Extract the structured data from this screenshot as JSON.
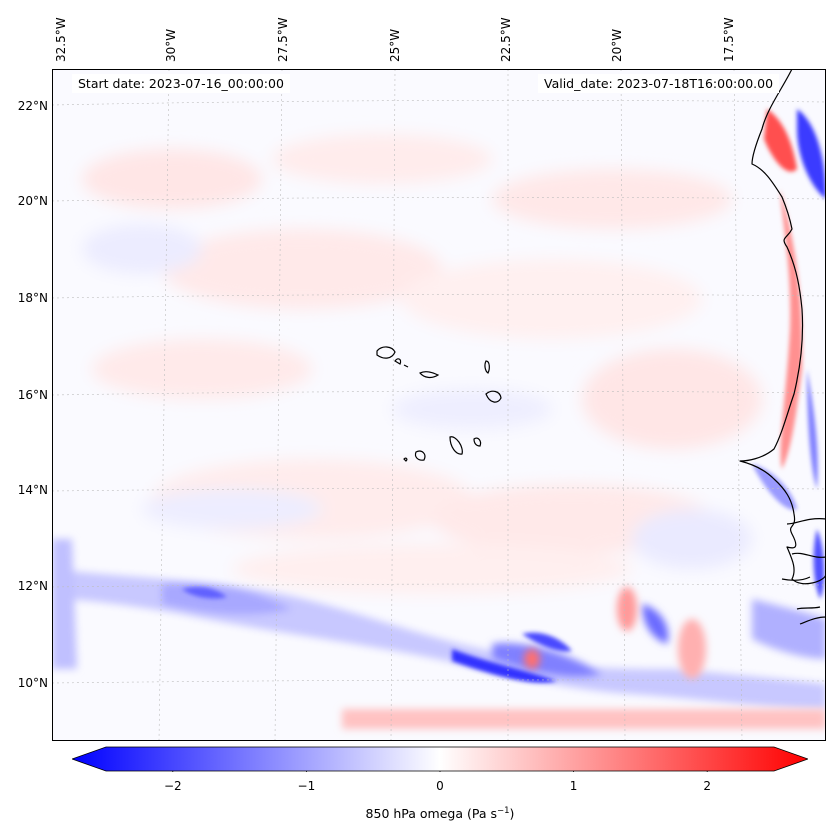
{
  "map": {
    "start_date": "Start date: 2023-07-16_00:00:00",
    "valid_date": "Valid_date: 2023-07-18T16:00:00.00",
    "longitude_labels": [
      "32.5°W",
      "30°W",
      "27.5°W",
      "25°W",
      "22.5°W",
      "20°W",
      "17.5°W"
    ],
    "latitude_labels": [
      "22°N",
      "20°N",
      "18°N",
      "16°N",
      "14°N",
      "12°N",
      "10°N"
    ],
    "variable": "850 hPa omega",
    "units": "Pa s",
    "units_exponent": "−1"
  },
  "colorbar": {
    "ticks": [
      "−2",
      "−1",
      "0",
      "1",
      "2"
    ],
    "tick_values": [
      -2,
      -1,
      0,
      1,
      2
    ],
    "range": [
      -2.5,
      2.5
    ],
    "colors": {
      "negative": "#0000ff",
      "zero": "#ffffff",
      "positive": "#ff0000"
    }
  }
}
